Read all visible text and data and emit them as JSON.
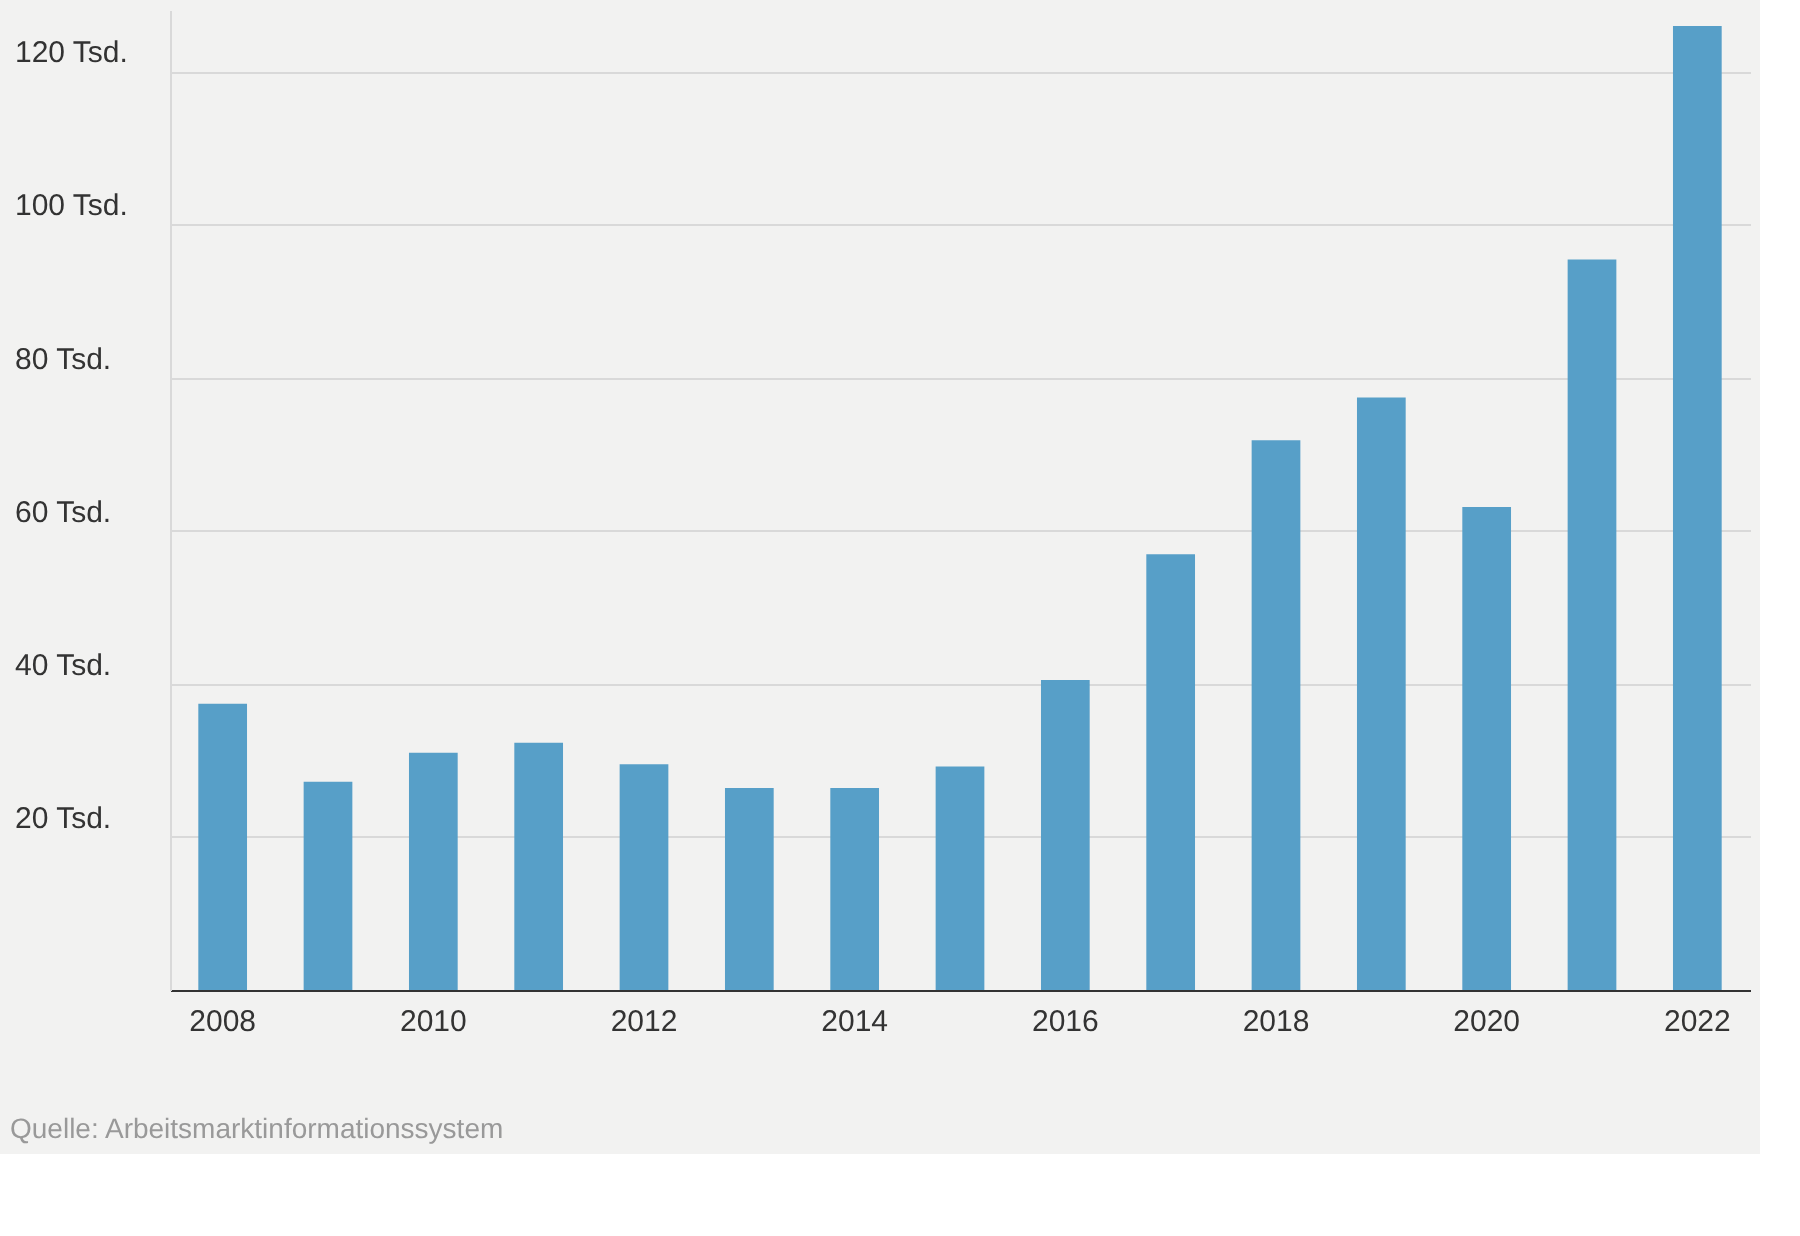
{
  "chart_data": {
    "type": "bar",
    "categories": [
      "2008",
      null,
      "2010",
      null,
      "2012",
      null,
      "2014",
      null,
      "2016",
      null,
      "2018",
      null,
      "2020",
      null,
      "2022"
    ],
    "values": [
      37.4,
      27.2,
      31.0,
      32.3,
      29.5,
      26.4,
      26.4,
      29.2,
      40.5,
      56.9,
      71.8,
      77.4,
      63.1,
      95.4,
      125.9
    ],
    "color": "#579fc8",
    "ylim": [
      0,
      128
    ],
    "yticks": [
      {
        "value": 0,
        "label": null
      },
      {
        "value": 20,
        "label": "20 Tsd."
      },
      {
        "value": 40,
        "label": "40 Tsd."
      },
      {
        "value": 60,
        "label": "60 Tsd."
      },
      {
        "value": 80,
        "label": "80 Tsd."
      },
      {
        "value": 100,
        "label": "100 Tsd."
      },
      {
        "value": 120,
        "label": "120 Tsd."
      }
    ],
    "grid": "y",
    "annotations": [
      "Quelle: Arbeitsmarktinformationssystem"
    ]
  }
}
